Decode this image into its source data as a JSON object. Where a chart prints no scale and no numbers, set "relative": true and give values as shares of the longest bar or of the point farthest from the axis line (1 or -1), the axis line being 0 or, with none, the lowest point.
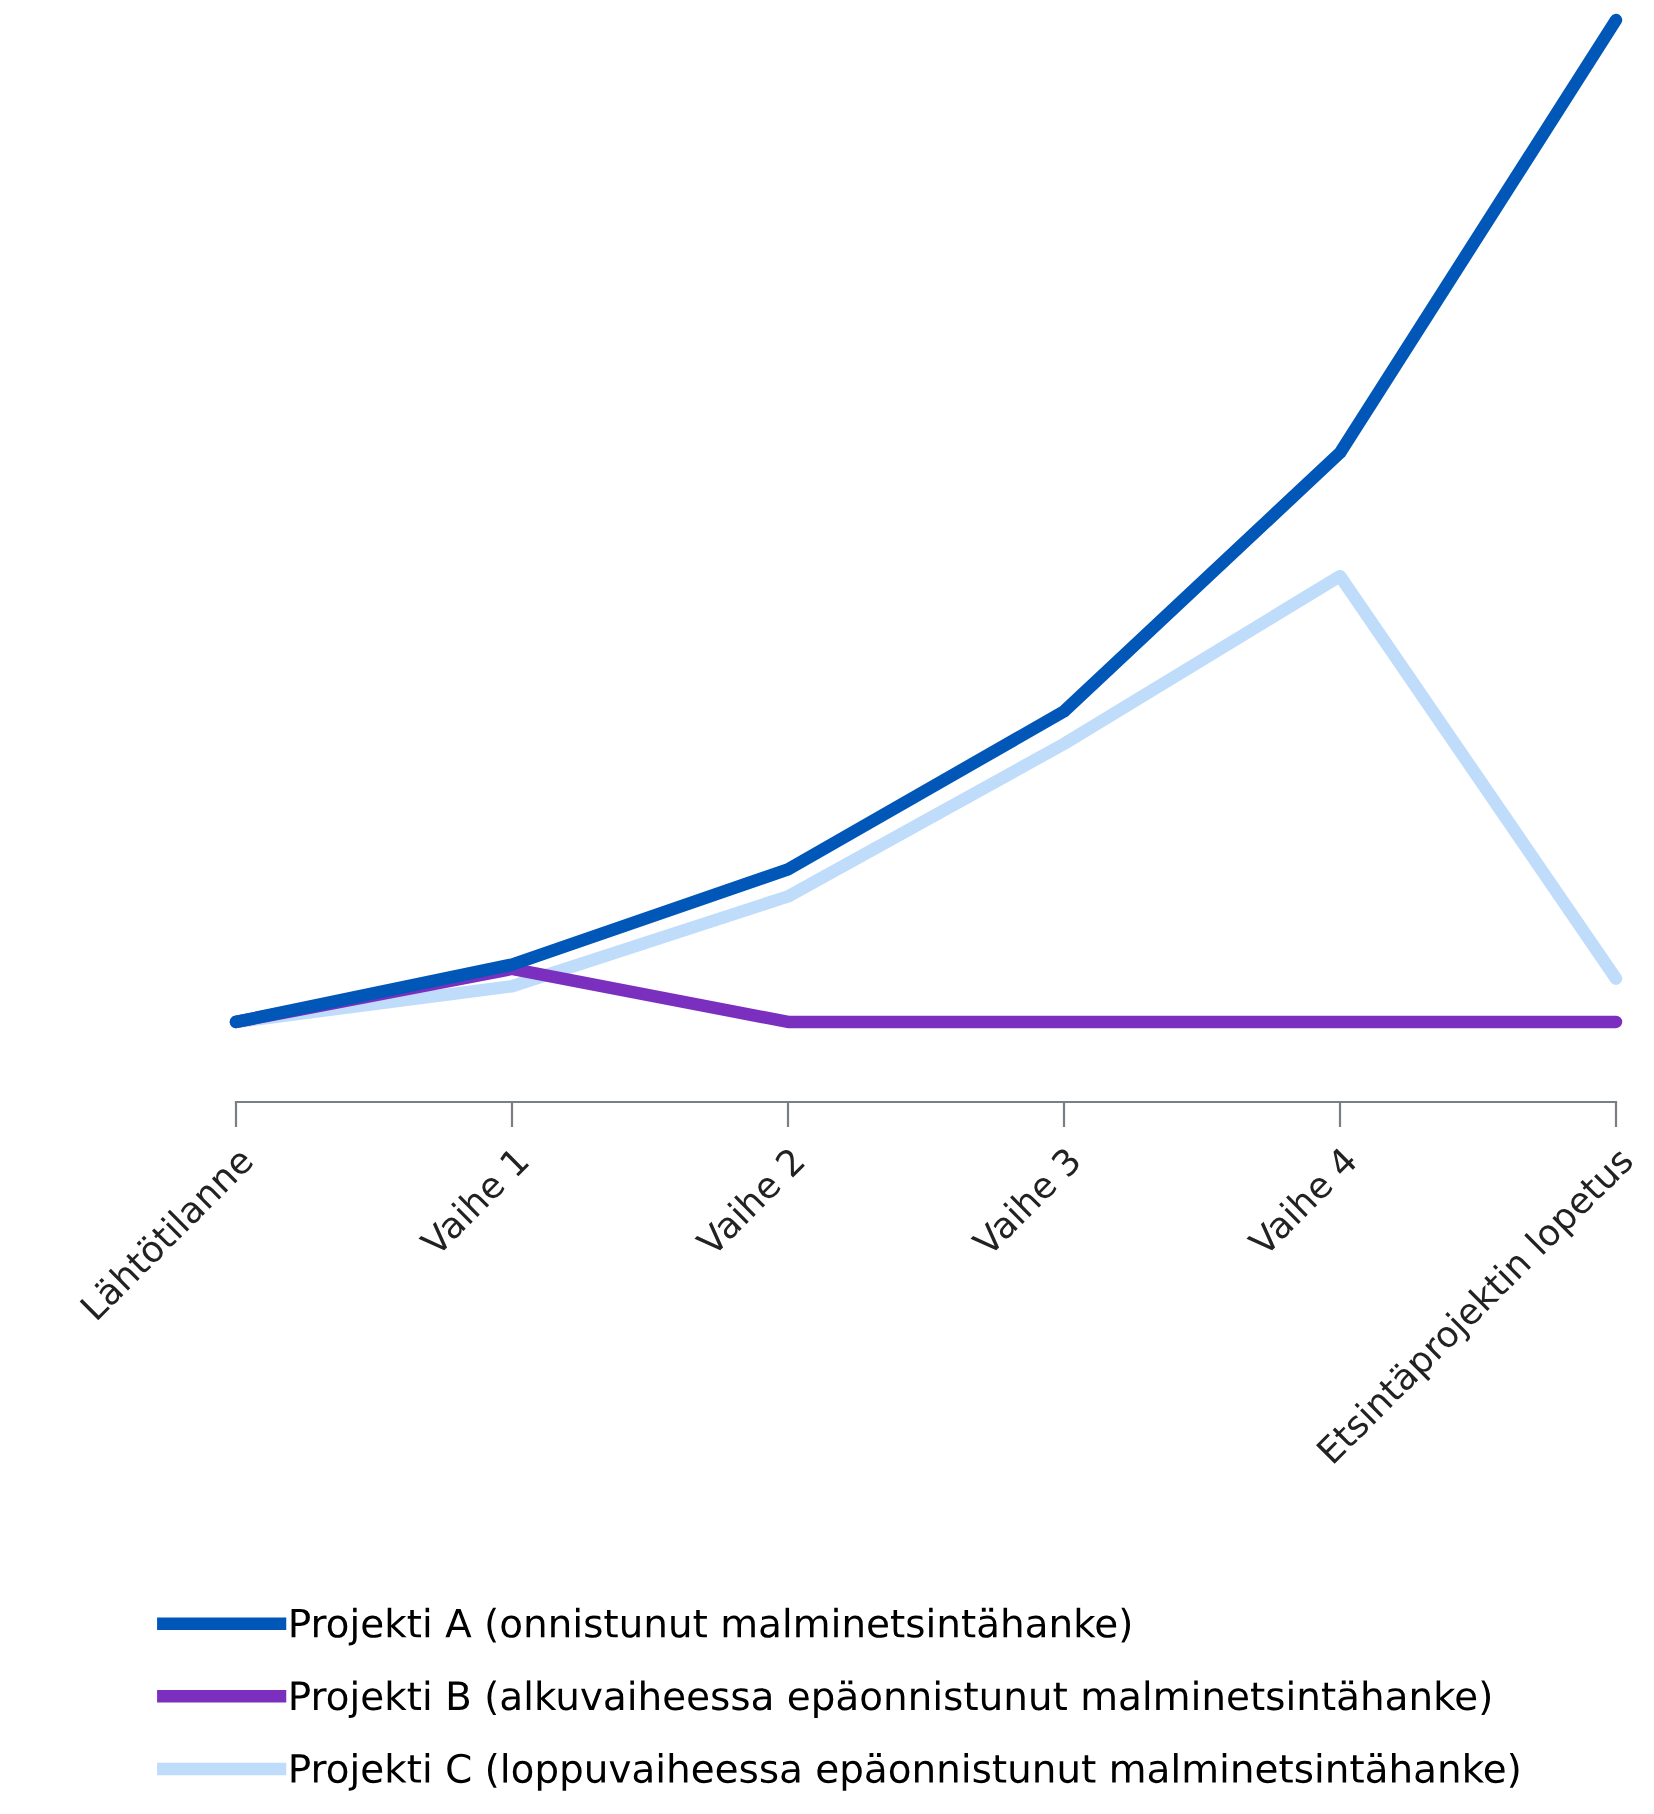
{
  "chart_data": {
    "type": "line",
    "relative": true,
    "categories": [
      "Lähtötilanne",
      "Vaihe 1",
      "Vaihe 2",
      "Vaihe 3",
      "Vaihe 4",
      "Etsintäprojektin lopetus"
    ],
    "series": [
      {
        "name": "Projekti A (onnistunut malminetsintähanke)",
        "color": "#0057b8",
        "values": [
          0.074,
          0.127,
          0.215,
          0.361,
          0.6,
          1
        ]
      },
      {
        "name": "Projekti B (alkuvaiheessa epäonnistunut malminetsintähanke)",
        "color": "#7b2fbe",
        "values": [
          0.074,
          0.123,
          0.074,
          0.074,
          0.074,
          0.074
        ]
      },
      {
        "name": "Projekti C (loppuvaiheessa epäonnistunut malminetsintähanke)",
        "color": "#c0dcfb",
        "values": [
          0.074,
          0.107,
          0.19,
          0.331,
          0.486,
          0.114
        ]
      }
    ],
    "legend": "bottom",
    "grid": false,
    "marker": "none",
    "line_style": "solid",
    "tick_labels": "x"
  }
}
